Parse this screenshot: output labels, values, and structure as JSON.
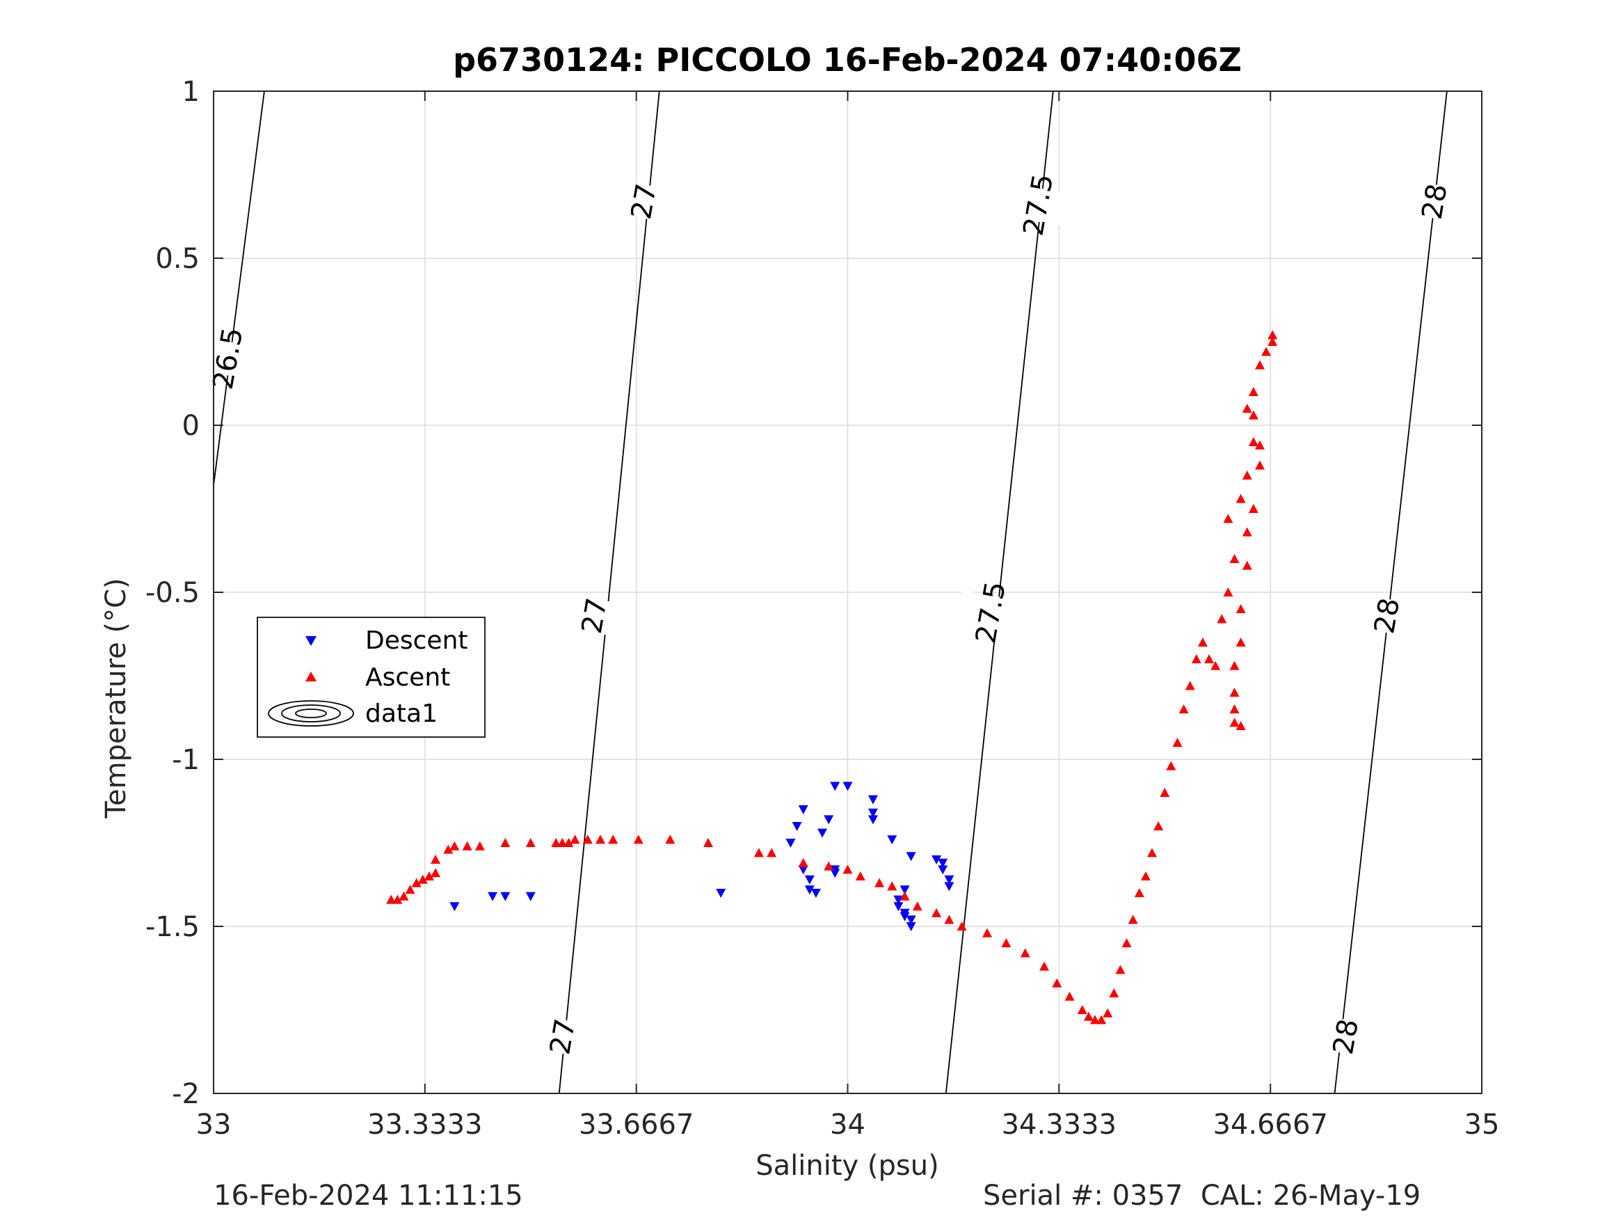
{
  "chart_data": {
    "type": "scatter",
    "title": "p6730124: PICCOLO 16-Feb-2024 07:40:06Z",
    "xlabel": "Salinity (psu)",
    "ylabel": "Temperature (°C)",
    "xlim": [
      33,
      35
    ],
    "ylim": [
      -2,
      1
    ],
    "x_ticks": [
      33,
      33.3333,
      33.6667,
      34,
      34.3333,
      34.6667,
      35
    ],
    "x_tick_labels": [
      "33",
      "33.3333",
      "33.6667",
      "34",
      "34.3333",
      "34.6667",
      "35"
    ],
    "y_ticks": [
      1,
      0.5,
      0,
      -0.5,
      -1,
      -1.5,
      -2
    ],
    "y_tick_labels": [
      "1",
      "0.5",
      "0",
      "-0.5",
      "-1",
      "-1.5",
      "-2"
    ],
    "grid": true,
    "legend_position": "left-middle",
    "series": [
      {
        "name": "Descent",
        "marker": "triangle-down",
        "color": "#0000ff",
        "points": [
          [
            33.38,
            -1.44
          ],
          [
            33.44,
            -1.41
          ],
          [
            33.46,
            -1.41
          ],
          [
            33.5,
            -1.41
          ],
          [
            33.8,
            -1.4
          ],
          [
            33.91,
            -1.25
          ],
          [
            33.92,
            -1.2
          ],
          [
            33.93,
            -1.15
          ],
          [
            33.96,
            -1.22
          ],
          [
            33.97,
            -1.18
          ],
          [
            33.98,
            -1.08
          ],
          [
            34.0,
            -1.08
          ],
          [
            33.93,
            -1.33
          ],
          [
            33.94,
            -1.36
          ],
          [
            33.94,
            -1.39
          ],
          [
            33.95,
            -1.4
          ],
          [
            33.98,
            -1.34
          ],
          [
            33.98,
            -1.33
          ],
          [
            34.04,
            -1.12
          ],
          [
            34.04,
            -1.16
          ],
          [
            34.04,
            -1.18
          ],
          [
            34.07,
            -1.24
          ],
          [
            34.08,
            -1.42
          ],
          [
            34.08,
            -1.44
          ],
          [
            34.09,
            -1.46
          ],
          [
            34.09,
            -1.47
          ],
          [
            34.1,
            -1.48
          ],
          [
            34.1,
            -1.5
          ],
          [
            34.09,
            -1.39
          ],
          [
            34.1,
            -1.29
          ],
          [
            34.14,
            -1.3
          ],
          [
            34.15,
            -1.31
          ],
          [
            34.15,
            -1.33
          ],
          [
            34.16,
            -1.36
          ],
          [
            34.16,
            -1.38
          ]
        ]
      },
      {
        "name": "Ascent",
        "marker": "triangle-up",
        "color": "#ff0000",
        "points": [
          [
            33.28,
            -1.42
          ],
          [
            33.29,
            -1.42
          ],
          [
            33.3,
            -1.41
          ],
          [
            33.31,
            -1.39
          ],
          [
            33.32,
            -1.37
          ],
          [
            33.33,
            -1.36
          ],
          [
            33.34,
            -1.35
          ],
          [
            33.35,
            -1.34
          ],
          [
            33.35,
            -1.3
          ],
          [
            33.37,
            -1.27
          ],
          [
            33.38,
            -1.26
          ],
          [
            33.4,
            -1.26
          ],
          [
            33.42,
            -1.26
          ],
          [
            33.46,
            -1.25
          ],
          [
            33.5,
            -1.25
          ],
          [
            33.54,
            -1.25
          ],
          [
            33.55,
            -1.25
          ],
          [
            33.56,
            -1.25
          ],
          [
            33.57,
            -1.24
          ],
          [
            33.59,
            -1.24
          ],
          [
            33.61,
            -1.24
          ],
          [
            33.63,
            -1.24
          ],
          [
            33.67,
            -1.24
          ],
          [
            33.72,
            -1.24
          ],
          [
            33.78,
            -1.25
          ],
          [
            33.86,
            -1.28
          ],
          [
            33.88,
            -1.28
          ],
          [
            33.93,
            -1.31
          ],
          [
            33.97,
            -1.32
          ],
          [
            34.0,
            -1.33
          ],
          [
            34.02,
            -1.35
          ],
          [
            34.05,
            -1.37
          ],
          [
            34.07,
            -1.38
          ],
          [
            34.09,
            -1.41
          ],
          [
            34.11,
            -1.44
          ],
          [
            34.14,
            -1.46
          ],
          [
            34.16,
            -1.48
          ],
          [
            34.18,
            -1.5
          ],
          [
            34.22,
            -1.52
          ],
          [
            34.25,
            -1.55
          ],
          [
            34.28,
            -1.58
          ],
          [
            34.31,
            -1.62
          ],
          [
            34.33,
            -1.67
          ],
          [
            34.35,
            -1.71
          ],
          [
            34.37,
            -1.75
          ],
          [
            34.38,
            -1.77
          ],
          [
            34.39,
            -1.78
          ],
          [
            34.4,
            -1.78
          ],
          [
            34.41,
            -1.76
          ],
          [
            34.42,
            -1.7
          ],
          [
            34.43,
            -1.63
          ],
          [
            34.44,
            -1.55
          ],
          [
            34.45,
            -1.48
          ],
          [
            34.46,
            -1.4
          ],
          [
            34.47,
            -1.35
          ],
          [
            34.48,
            -1.28
          ],
          [
            34.49,
            -1.2
          ],
          [
            34.5,
            -1.1
          ],
          [
            34.51,
            -1.02
          ],
          [
            34.52,
            -0.95
          ],
          [
            34.53,
            -0.85
          ],
          [
            34.54,
            -0.78
          ],
          [
            34.55,
            -0.7
          ],
          [
            34.56,
            -0.65
          ],
          [
            34.57,
            -0.7
          ],
          [
            34.58,
            -0.72
          ],
          [
            34.59,
            -0.58
          ],
          [
            34.6,
            -0.5
          ],
          [
            34.61,
            -0.4
          ],
          [
            34.6,
            -0.28
          ],
          [
            34.62,
            -0.22
          ],
          [
            34.63,
            -0.15
          ],
          [
            34.64,
            -0.05
          ],
          [
            34.63,
            0.05
          ],
          [
            34.64,
            0.1
          ],
          [
            34.65,
            0.18
          ],
          [
            34.66,
            0.22
          ],
          [
            34.67,
            0.25
          ],
          [
            34.67,
            0.27
          ],
          [
            34.64,
            0.03
          ],
          [
            34.65,
            -0.06
          ],
          [
            34.65,
            -0.12
          ],
          [
            34.64,
            -0.25
          ],
          [
            34.63,
            -0.32
          ],
          [
            34.63,
            -0.42
          ],
          [
            34.62,
            -0.55
          ],
          [
            34.62,
            -0.65
          ],
          [
            34.61,
            -0.72
          ],
          [
            34.61,
            -0.8
          ],
          [
            34.61,
            -0.85
          ],
          [
            34.61,
            -0.89
          ],
          [
            34.62,
            -0.9
          ]
        ]
      }
    ],
    "contours": {
      "name": "data1",
      "levels": [
        26.5,
        27,
        27.5,
        28
      ],
      "lines": [
        {
          "level": 26.5,
          "points": [
            [
              33.08,
              1
            ],
            [
              33.0,
              -0.18
            ]
          ]
        },
        {
          "level": 27,
          "points": [
            [
              33.703,
              1
            ],
            [
              33.545,
              -2
            ]
          ]
        },
        {
          "level": 27.5,
          "points": [
            [
              34.324,
              1
            ],
            [
              34.155,
              -2
            ]
          ]
        },
        {
          "level": 28,
          "points": [
            [
              34.945,
              1
            ],
            [
              34.768,
              -2
            ]
          ]
        }
      ],
      "labels": [
        {
          "text": "26.5",
          "at": [
            33.022,
            0.2
          ]
        },
        {
          "text": "27",
          "at": [
            33.678,
            0.67
          ]
        },
        {
          "text": "27",
          "at": [
            33.6,
            -0.57
          ]
        },
        {
          "text": "27",
          "at": [
            33.55,
            -1.83
          ]
        },
        {
          "text": "27.5",
          "at": [
            34.3,
            0.66
          ]
        },
        {
          "text": "27.5",
          "at": [
            34.225,
            -0.56
          ]
        },
        {
          "text": "28",
          "at": [
            34.925,
            0.67
          ]
        },
        {
          "text": "28",
          "at": [
            34.85,
            -0.57
          ]
        },
        {
          "text": "28",
          "at": [
            34.785,
            -1.83
          ]
        }
      ]
    },
    "legend": [
      "Descent",
      "Ascent",
      "data1"
    ]
  },
  "footer": {
    "timestamp": "16-Feb-2024 11:11:15",
    "serial": "Serial #: 0357  CAL: 26-May-19"
  }
}
